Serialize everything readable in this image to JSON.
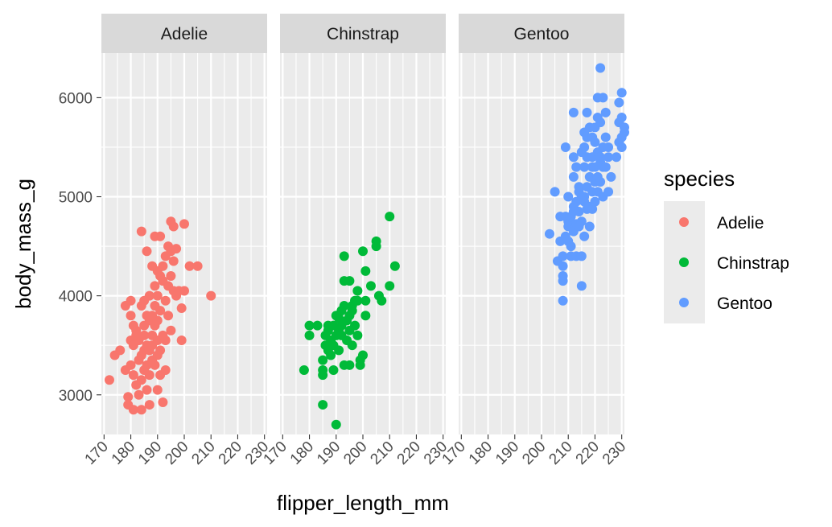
{
  "chart_data": {
    "type": "scatter",
    "facet_by": "species",
    "panels": [
      "Adelie",
      "Chinstrap",
      "Gentoo"
    ],
    "xlabel": "flipper_length_mm",
    "ylabel": "body_mass_g",
    "xlim": [
      169,
      231
    ],
    "ylim": [
      2600,
      6450
    ],
    "x_ticks": [
      170,
      180,
      190,
      200,
      210,
      220,
      230
    ],
    "x_tick_labels": [
      "170",
      "180",
      "190",
      "200",
      "210",
      "220",
      "230"
    ],
    "y_ticks": [
      3000,
      4000,
      5000,
      6000
    ],
    "y_tick_labels": [
      "3000",
      "4000",
      "5000",
      "6000"
    ],
    "legend": {
      "title": "species",
      "entries": [
        {
          "label": "Adelie",
          "color": "#F8766D"
        },
        {
          "label": "Chinstrap",
          "color": "#00BA38"
        },
        {
          "label": "Gentoo",
          "color": "#619CFF"
        }
      ]
    },
    "series": [
      {
        "name": "Adelie",
        "color": "#F8766D",
        "points": [
          [
            172,
            3150
          ],
          [
            174,
            3400
          ],
          [
            176,
            3450
          ],
          [
            178,
            3900
          ],
          [
            178,
            3250
          ],
          [
            179,
            2900
          ],
          [
            179,
            2980
          ],
          [
            180,
            3950
          ],
          [
            180,
            3800
          ],
          [
            180,
            3550
          ],
          [
            180,
            3300
          ],
          [
            181,
            3700
          ],
          [
            181,
            3500
          ],
          [
            181,
            3200
          ],
          [
            181,
            2850
          ],
          [
            182,
            3650
          ],
          [
            182,
            3100
          ],
          [
            182,
            3600
          ],
          [
            183,
            3550
          ],
          [
            183,
            3350
          ],
          [
            183,
            3000
          ],
          [
            184,
            4650
          ],
          [
            184,
            3900
          ],
          [
            184,
            3400
          ],
          [
            184,
            3150
          ],
          [
            184,
            2850
          ],
          [
            185,
            3450
          ],
          [
            185,
            3700
          ],
          [
            185,
            3950
          ],
          [
            185,
            3250
          ],
          [
            185,
            3600
          ],
          [
            186,
            4450
          ],
          [
            186,
            3800
          ],
          [
            186,
            3500
          ],
          [
            186,
            3300
          ],
          [
            186,
            3050
          ],
          [
            187,
            3750
          ],
          [
            187,
            3450
          ],
          [
            187,
            3200
          ],
          [
            187,
            2900
          ],
          [
            187,
            4000
          ],
          [
            188,
            4300
          ],
          [
            188,
            3800
          ],
          [
            188,
            3600
          ],
          [
            188,
            3350
          ],
          [
            188,
            3500
          ],
          [
            189,
            4100
          ],
          [
            189,
            4600
          ],
          [
            189,
            3900
          ],
          [
            189,
            3300
          ],
          [
            189,
            3700
          ],
          [
            190,
            4250
          ],
          [
            190,
            4000
          ],
          [
            190,
            3750
          ],
          [
            190,
            3550
          ],
          [
            190,
            3400
          ],
          [
            190,
            3050
          ],
          [
            191,
            4600
          ],
          [
            191,
            4200
          ],
          [
            191,
            3850
          ],
          [
            191,
            3450
          ],
          [
            191,
            3200
          ],
          [
            192,
            4300
          ],
          [
            192,
            4150
          ],
          [
            192,
            3600
          ],
          [
            192,
            2925
          ],
          [
            193,
            4400
          ],
          [
            193,
            3950
          ],
          [
            193,
            3550
          ],
          [
            193,
            3250
          ],
          [
            194,
            4100
          ],
          [
            194,
            3800
          ],
          [
            194,
            4500
          ],
          [
            195,
            4750
          ],
          [
            195,
            4200
          ],
          [
            195,
            3650
          ],
          [
            195,
            4450
          ],
          [
            196,
            4700
          ],
          [
            196,
            4350
          ],
          [
            196,
            4050
          ],
          [
            197,
            4475
          ],
          [
            197,
            4000
          ],
          [
            198,
            4050
          ],
          [
            199,
            3875
          ],
          [
            199,
            3550
          ],
          [
            200,
            4725
          ],
          [
            200,
            4050
          ],
          [
            202,
            4300
          ],
          [
            205,
            4300
          ],
          [
            210,
            4000
          ]
        ]
      },
      {
        "name": "Chinstrap",
        "color": "#00BA38",
        "points": [
          [
            178,
            3250
          ],
          [
            180,
            3700
          ],
          [
            180,
            3600
          ],
          [
            183,
            3700
          ],
          [
            185,
            3250
          ],
          [
            185,
            3350
          ],
          [
            185,
            3200
          ],
          [
            185,
            2900
          ],
          [
            186,
            3600
          ],
          [
            186,
            3500
          ],
          [
            187,
            3650
          ],
          [
            187,
            3450
          ],
          [
            187,
            3700
          ],
          [
            188,
            3550
          ],
          [
            188,
            3400
          ],
          [
            189,
            3250
          ],
          [
            189,
            3500
          ],
          [
            189,
            3700
          ],
          [
            190,
            3600
          ],
          [
            190,
            3800
          ],
          [
            190,
            2700
          ],
          [
            191,
            3775
          ],
          [
            191,
            3650
          ],
          [
            191,
            3450
          ],
          [
            192,
            3700
          ],
          [
            192,
            3600
          ],
          [
            192,
            3850
          ],
          [
            193,
            4400
          ],
          [
            193,
            3900
          ],
          [
            193,
            4150
          ],
          [
            193,
            3300
          ],
          [
            194,
            3550
          ],
          [
            194,
            3750
          ],
          [
            195,
            3800
          ],
          [
            195,
            3650
          ],
          [
            195,
            4150
          ],
          [
            195,
            3300
          ],
          [
            196,
            3850
          ],
          [
            196,
            3500
          ],
          [
            196,
            3900
          ],
          [
            197,
            3950
          ],
          [
            197,
            3700
          ],
          [
            198,
            3950
          ],
          [
            198,
            4050
          ],
          [
            198,
            3600
          ],
          [
            199,
            3300
          ],
          [
            199,
            3350
          ],
          [
            200,
            3400
          ],
          [
            200,
            4450
          ],
          [
            201,
            3800
          ],
          [
            201,
            3950
          ],
          [
            201,
            4250
          ],
          [
            203,
            4100
          ],
          [
            205,
            4550
          ],
          [
            205,
            4500
          ],
          [
            206,
            4000
          ],
          [
            207,
            3950
          ],
          [
            210,
            4800
          ],
          [
            210,
            4100
          ],
          [
            212,
            4300
          ]
        ]
      },
      {
        "name": "Gentoo",
        "color": "#619CFF",
        "points": [
          [
            203,
            4625
          ],
          [
            205,
            5050
          ],
          [
            206,
            4350
          ],
          [
            207,
            4800
          ],
          [
            207,
            4550
          ],
          [
            208,
            4150
          ],
          [
            208,
            4200
          ],
          [
            208,
            4300
          ],
          [
            208,
            4400
          ],
          [
            208,
            3950
          ],
          [
            209,
            4600
          ],
          [
            209,
            4800
          ],
          [
            209,
            5500
          ],
          [
            210,
            5000
          ],
          [
            210,
            4700
          ],
          [
            210,
            4750
          ],
          [
            210,
            4550
          ],
          [
            211,
            4400
          ],
          [
            211,
            4800
          ],
          [
            211,
            4500
          ],
          [
            212,
            5850
          ],
          [
            212,
            5400
          ],
          [
            212,
            5200
          ],
          [
            212,
            4900
          ],
          [
            212,
            4650
          ],
          [
            212,
            4850
          ],
          [
            213,
            5300
          ],
          [
            213,
            4725
          ],
          [
            213,
            4950
          ],
          [
            213,
            4400
          ],
          [
            214,
            5100
          ],
          [
            214,
            4700
          ],
          [
            214,
            4850
          ],
          [
            214,
            5050
          ],
          [
            215,
            5450
          ],
          [
            215,
            5000
          ],
          [
            215,
            4750
          ],
          [
            215,
            4100
          ],
          [
            215,
            4400
          ],
          [
            216,
            5650
          ],
          [
            216,
            5300
          ],
          [
            216,
            5000
          ],
          [
            216,
            4950
          ],
          [
            216,
            4600
          ],
          [
            216,
            5500
          ],
          [
            217,
            5850
          ],
          [
            217,
            5400
          ],
          [
            217,
            5100
          ],
          [
            217,
            4875
          ],
          [
            217,
            5600
          ],
          [
            218,
            5700
          ],
          [
            218,
            5200
          ],
          [
            218,
            4900
          ],
          [
            218,
            4700
          ],
          [
            219,
            5300
          ],
          [
            219,
            5050
          ],
          [
            219,
            4875
          ],
          [
            219,
            5400
          ],
          [
            219,
            5600
          ],
          [
            220,
            5550
          ],
          [
            220,
            5300
          ],
          [
            220,
            5150
          ],
          [
            220,
            4950
          ],
          [
            220,
            5700
          ],
          [
            221,
            6000
          ],
          [
            221,
            5800
          ],
          [
            221,
            5450
          ],
          [
            221,
            5200
          ],
          [
            221,
            5050
          ],
          [
            222,
            6300
          ],
          [
            222,
            5750
          ],
          [
            222,
            5400
          ],
          [
            222,
            5350
          ],
          [
            222,
            5150
          ],
          [
            223,
            6000
          ],
          [
            223,
            5300
          ],
          [
            223,
            5000
          ],
          [
            223,
            5500
          ],
          [
            224,
            5600
          ],
          [
            224,
            5300
          ],
          [
            224,
            5850
          ],
          [
            225,
            5050
          ],
          [
            225,
            5500
          ],
          [
            225,
            5400
          ],
          [
            226,
            5200
          ],
          [
            228,
            5400
          ],
          [
            229,
            5950
          ],
          [
            229,
            5750
          ],
          [
            229,
            5550
          ],
          [
            230,
            6050
          ],
          [
            230,
            5800
          ],
          [
            230,
            5600
          ],
          [
            230,
            5500
          ],
          [
            231,
            5700
          ],
          [
            231,
            5650
          ]
        ]
      }
    ]
  }
}
